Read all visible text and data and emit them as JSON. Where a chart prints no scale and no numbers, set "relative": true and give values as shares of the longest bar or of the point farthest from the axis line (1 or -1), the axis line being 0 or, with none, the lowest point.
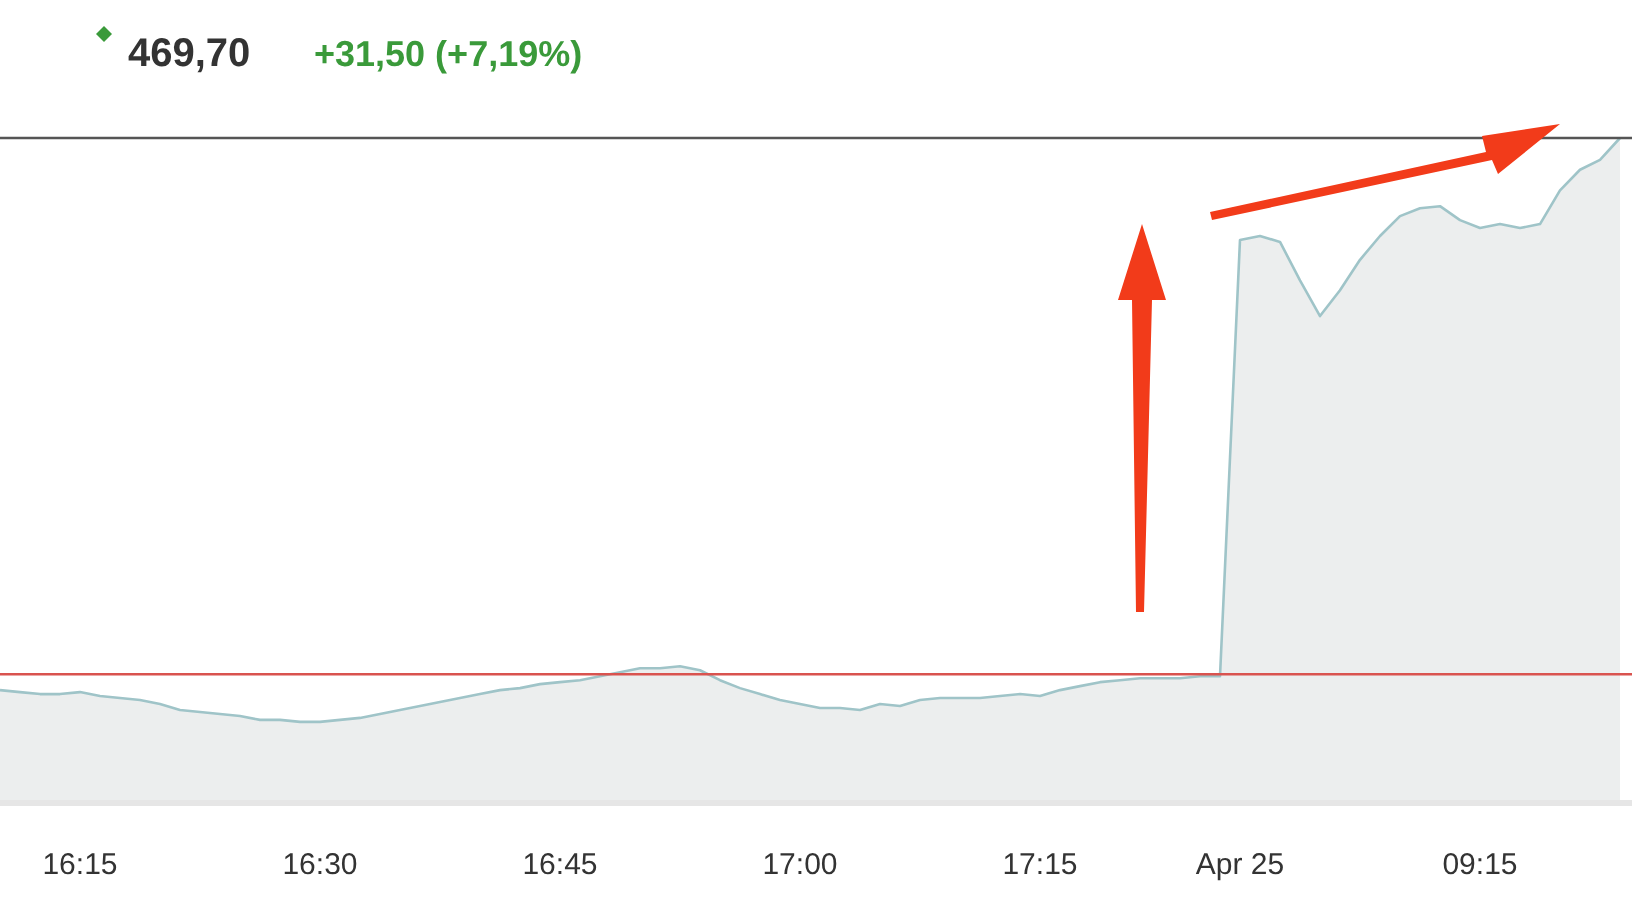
{
  "chart_data": {
    "type": "area",
    "title": "469,70",
    "subtitle": "+31,50 (+7,19%)",
    "relative": true,
    "color": "#9fc4c8",
    "categories": [
      null,
      null,
      null,
      null,
      "16:15",
      null,
      null,
      null,
      null,
      null,
      null,
      null,
      null,
      null,
      null,
      null,
      "16:30",
      null,
      null,
      null,
      null,
      null,
      null,
      null,
      null,
      null,
      null,
      null,
      "16:45",
      null,
      null,
      null,
      null,
      null,
      null,
      null,
      null,
      null,
      null,
      null,
      "17:00",
      null,
      null,
      null,
      null,
      null,
      null,
      null,
      null,
      null,
      null,
      null,
      "17:15",
      null,
      null,
      null,
      null,
      null,
      null,
      null,
      null,
      null,
      "Apr 25",
      null,
      null,
      null,
      null,
      null,
      null,
      null,
      null,
      null,
      null,
      null,
      "09:15",
      null,
      null,
      null,
      null,
      null,
      null,
      null
    ],
    "values": [
      0.166,
      0.163,
      0.16,
      0.16,
      0.163,
      0.157,
      0.154,
      0.151,
      0.145,
      0.136,
      0.133,
      0.13,
      0.127,
      0.121,
      0.121,
      0.118,
      0.118,
      0.121,
      0.124,
      0.13,
      0.136,
      0.142,
      0.148,
      0.154,
      0.16,
      0.166,
      0.169,
      0.175,
      0.178,
      0.181,
      0.187,
      0.193,
      0.199,
      0.199,
      0.202,
      0.196,
      0.181,
      0.169,
      0.16,
      0.151,
      0.145,
      0.139,
      0.139,
      0.136,
      0.145,
      0.142,
      0.151,
      0.154,
      0.154,
      0.154,
      0.157,
      0.16,
      0.157,
      0.166,
      0.172,
      0.178,
      0.181,
      0.184,
      0.184,
      0.184,
      0.187,
      0.187,
      0.846,
      0.852,
      0.843,
      0.785,
      0.731,
      0.77,
      0.816,
      0.852,
      0.882,
      0.894,
      0.897,
      0.876,
      0.864,
      0.87,
      0.864,
      0.87,
      0.921,
      0.952,
      0.967,
      1
    ],
    "ref_lines": [
      {
        "axis": "y",
        "value": 0.19,
        "color": "#d9534f"
      },
      {
        "axis": "y",
        "value": 1,
        "color": "#555555"
      }
    ]
  }
}
